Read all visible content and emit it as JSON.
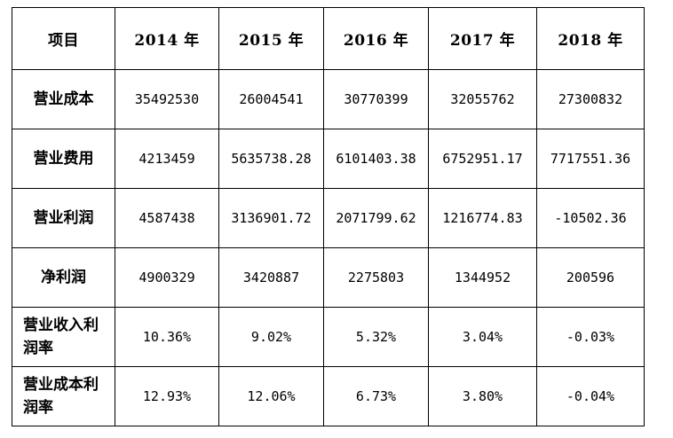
{
  "table": {
    "headers": [
      "项目",
      "2014 年",
      "2015 年",
      "2016 年",
      "2017 年",
      "2018 年"
    ],
    "rows": [
      {
        "label": "营业成本",
        "values": [
          "35492530",
          "26004541",
          "30770399",
          "32055762",
          "27300832"
        ]
      },
      {
        "label": "营业费用",
        "values": [
          "4213459",
          "5635738.28",
          "6101403.38",
          "6752951.17",
          "7717551.36"
        ]
      },
      {
        "label": "营业利润",
        "values": [
          "4587438",
          "3136901.72",
          "2071799.62",
          "1216774.83",
          "-10502.36"
        ]
      },
      {
        "label": "净利润",
        "values": [
          "4900329",
          "3420887",
          "2275803",
          "1344952",
          "200596"
        ]
      },
      {
        "label": "营业收入利润率",
        "values": [
          "10.36%",
          "9.02%",
          "5.32%",
          "3.04%",
          "-0.03%"
        ]
      },
      {
        "label": "营业成本利润率",
        "values": [
          "12.93%",
          "12.06%",
          "6.73%",
          "3.80%",
          "-0.04%"
        ]
      }
    ]
  }
}
